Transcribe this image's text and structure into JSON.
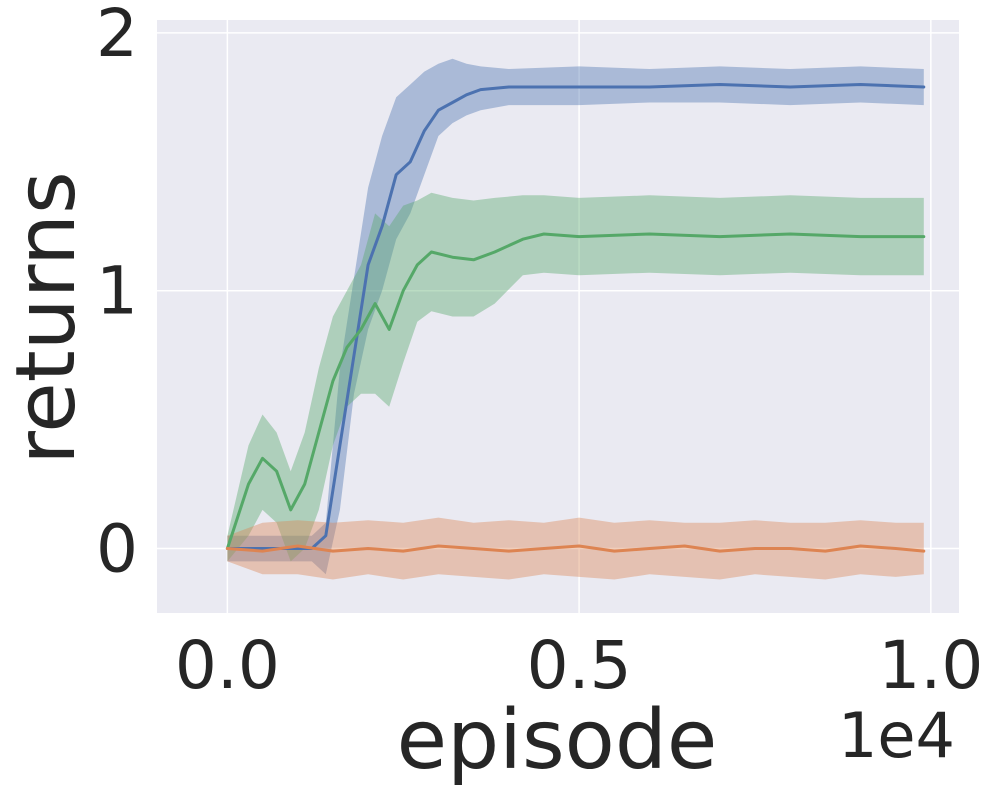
{
  "chart_data": {
    "type": "line",
    "xlabel": "episode",
    "ylabel": "returns",
    "x_offset_label": "1e4",
    "xlim": [
      -0.1,
      1.04
    ],
    "ylim": [
      -0.25,
      2.05
    ],
    "x_ticks": [
      0.0,
      0.5,
      1.0
    ],
    "x_tick_labels": [
      "0.0",
      "0.5",
      "1.0"
    ],
    "y_ticks": [
      0,
      1,
      2
    ],
    "y_tick_labels": [
      "0",
      "1",
      "2"
    ],
    "grid": true,
    "legend": "none",
    "background": "#eaeaf2",
    "series": [
      {
        "color": "#4c72b0",
        "x": [
          0.0,
          0.05,
          0.1,
          0.12,
          0.14,
          0.16,
          0.18,
          0.2,
          0.22,
          0.24,
          0.26,
          0.28,
          0.3,
          0.32,
          0.34,
          0.36,
          0.4,
          0.5,
          0.6,
          0.7,
          0.8,
          0.9,
          0.99
        ],
        "values": [
          0.0,
          0.0,
          0.0,
          0.0,
          0.05,
          0.4,
          0.75,
          1.1,
          1.25,
          1.45,
          1.5,
          1.62,
          1.7,
          1.73,
          1.76,
          1.78,
          1.79,
          1.79,
          1.79,
          1.8,
          1.79,
          1.8,
          1.79
        ],
        "lower": [
          -0.05,
          -0.05,
          -0.05,
          -0.05,
          -0.1,
          0.15,
          0.6,
          0.85,
          1.0,
          1.2,
          1.3,
          1.45,
          1.6,
          1.65,
          1.68,
          1.7,
          1.72,
          1.72,
          1.73,
          1.73,
          1.72,
          1.73,
          1.72
        ],
        "upper": [
          0.05,
          0.05,
          0.05,
          0.05,
          0.1,
          0.7,
          1.05,
          1.4,
          1.6,
          1.75,
          1.8,
          1.85,
          1.88,
          1.9,
          1.88,
          1.87,
          1.86,
          1.87,
          1.86,
          1.87,
          1.86,
          1.87,
          1.86
        ]
      },
      {
        "color": "#55a868",
        "x": [
          0.0,
          0.03,
          0.05,
          0.07,
          0.09,
          0.11,
          0.13,
          0.15,
          0.17,
          0.19,
          0.21,
          0.23,
          0.25,
          0.27,
          0.29,
          0.32,
          0.35,
          0.38,
          0.42,
          0.45,
          0.5,
          0.6,
          0.7,
          0.8,
          0.9,
          0.99
        ],
        "values": [
          0.0,
          0.25,
          0.35,
          0.3,
          0.15,
          0.25,
          0.45,
          0.65,
          0.78,
          0.85,
          0.95,
          0.85,
          1.0,
          1.1,
          1.15,
          1.13,
          1.12,
          1.15,
          1.2,
          1.22,
          1.21,
          1.22,
          1.21,
          1.22,
          1.21,
          1.21
        ],
        "lower": [
          -0.05,
          0.05,
          0.15,
          0.1,
          -0.05,
          0.0,
          0.15,
          0.4,
          0.55,
          0.6,
          0.6,
          0.55,
          0.72,
          0.88,
          0.92,
          0.9,
          0.9,
          0.95,
          1.06,
          1.07,
          1.06,
          1.07,
          1.06,
          1.07,
          1.06,
          1.06
        ],
        "upper": [
          0.05,
          0.4,
          0.52,
          0.45,
          0.3,
          0.45,
          0.7,
          0.9,
          1.0,
          1.1,
          1.3,
          1.25,
          1.33,
          1.35,
          1.38,
          1.36,
          1.35,
          1.36,
          1.37,
          1.37,
          1.36,
          1.37,
          1.36,
          1.37,
          1.36,
          1.36
        ]
      },
      {
        "color": "#dd8452",
        "x": [
          0.0,
          0.05,
          0.1,
          0.15,
          0.2,
          0.25,
          0.3,
          0.35,
          0.4,
          0.45,
          0.5,
          0.55,
          0.6,
          0.65,
          0.7,
          0.75,
          0.8,
          0.85,
          0.9,
          0.95,
          0.99
        ],
        "values": [
          0.0,
          -0.01,
          0.01,
          -0.01,
          0.0,
          -0.01,
          0.01,
          0.0,
          -0.01,
          0.0,
          0.01,
          -0.01,
          0.0,
          0.01,
          -0.01,
          0.0,
          0.0,
          -0.01,
          0.01,
          0.0,
          -0.01
        ],
        "lower": [
          -0.05,
          -0.1,
          -0.1,
          -0.12,
          -0.1,
          -0.12,
          -0.1,
          -0.11,
          -0.12,
          -0.1,
          -0.11,
          -0.12,
          -0.1,
          -0.11,
          -0.12,
          -0.1,
          -0.11,
          -0.12,
          -0.1,
          -0.11,
          -0.1
        ],
        "upper": [
          0.05,
          0.1,
          0.11,
          0.1,
          0.11,
          0.1,
          0.12,
          0.1,
          0.11,
          0.1,
          0.12,
          0.1,
          0.11,
          0.1,
          0.1,
          0.11,
          0.1,
          0.1,
          0.11,
          0.1,
          0.1
        ]
      }
    ]
  }
}
